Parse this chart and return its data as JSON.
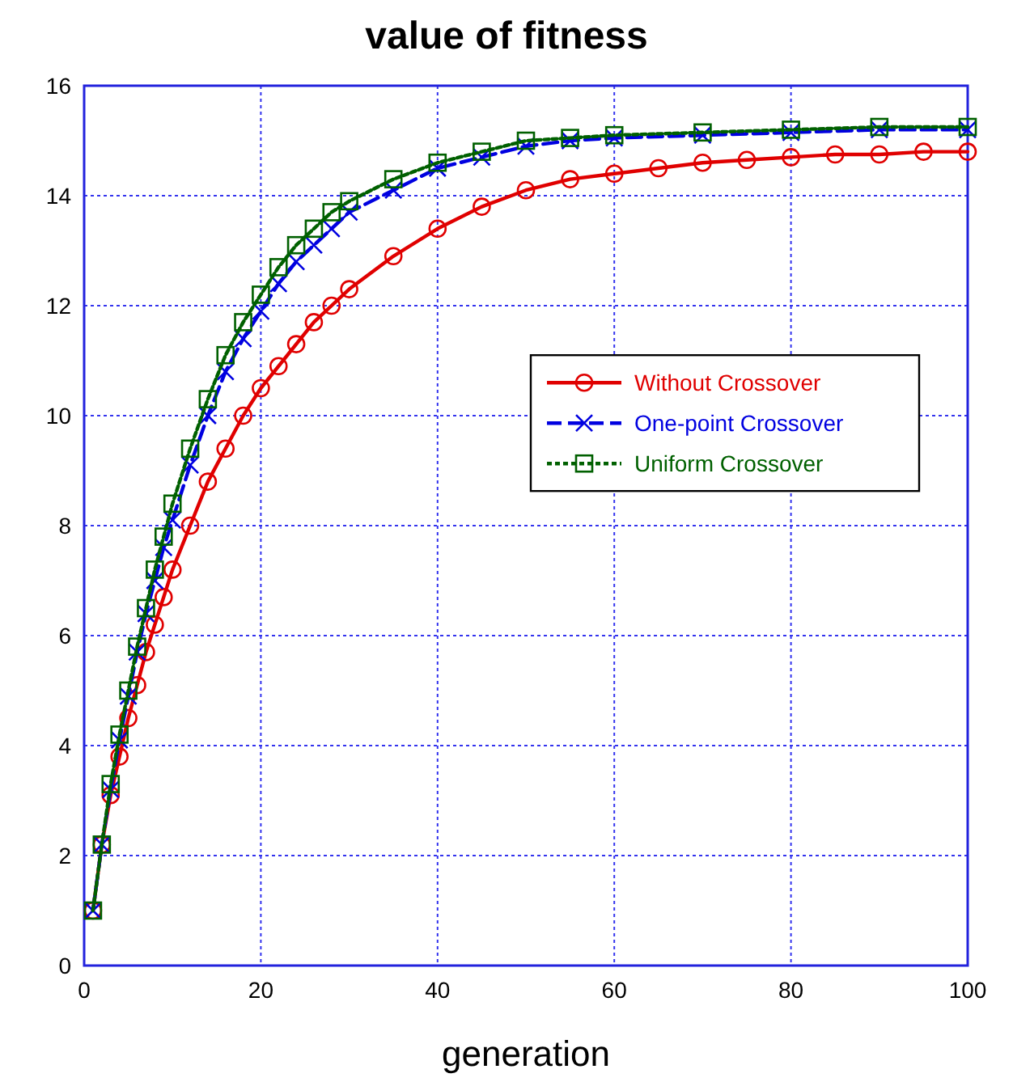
{
  "chart_data": {
    "type": "line",
    "title": "value of fitness",
    "xlabel": "generation",
    "xlim": [
      0,
      100
    ],
    "xticks": [
      0,
      20,
      40,
      60,
      80,
      100
    ],
    "ylim": [
      0,
      16
    ],
    "yticks": [
      0,
      2,
      4,
      6,
      8,
      10,
      12,
      14,
      16
    ],
    "grid": true,
    "legend": "right",
    "series": [
      {
        "name": "Without Crossover",
        "color": "#e00000",
        "marker": "circle",
        "line_style": "solid",
        "x": [
          1,
          2,
          3,
          4,
          5,
          6,
          7,
          8,
          9,
          10,
          12,
          14,
          16,
          18,
          20,
          22,
          24,
          26,
          28,
          30,
          35,
          40,
          45,
          50,
          55,
          60,
          65,
          70,
          75,
          80,
          85,
          90,
          95,
          100
        ],
        "values": [
          1,
          2.2,
          3.1,
          3.8,
          4.5,
          5.1,
          5.7,
          6.2,
          6.7,
          7.2,
          8.0,
          8.8,
          9.4,
          10.0,
          10.5,
          10.9,
          11.3,
          11.7,
          12.0,
          12.3,
          12.9,
          13.4,
          13.8,
          14.1,
          14.3,
          14.4,
          14.5,
          14.6,
          14.65,
          14.7,
          14.75,
          14.75,
          14.8,
          14.8
        ]
      },
      {
        "name": "One-point Crossover",
        "color": "#0000e0",
        "marker": "cross",
        "line_style": "dashed",
        "x": [
          1,
          2,
          3,
          4,
          5,
          6,
          7,
          8,
          9,
          10,
          12,
          14,
          16,
          18,
          20,
          22,
          24,
          26,
          28,
          30,
          35,
          40,
          45,
          50,
          55,
          60,
          70,
          80,
          90,
          100
        ],
        "values": [
          1,
          2.2,
          3.2,
          4.1,
          4.9,
          5.7,
          6.4,
          7.0,
          7.6,
          8.1,
          9.1,
          10.0,
          10.8,
          11.4,
          11.9,
          12.4,
          12.8,
          13.1,
          13.4,
          13.7,
          14.1,
          14.5,
          14.7,
          14.9,
          15.0,
          15.05,
          15.1,
          15.15,
          15.2,
          15.2
        ]
      },
      {
        "name": "Uniform Crossover",
        "color": "#006000",
        "marker": "square",
        "line_style": "dotted",
        "x": [
          1,
          2,
          3,
          4,
          5,
          6,
          7,
          8,
          9,
          10,
          12,
          14,
          16,
          18,
          20,
          22,
          24,
          26,
          28,
          30,
          35,
          40,
          45,
          50,
          55,
          60,
          70,
          80,
          90,
          100
        ],
        "values": [
          1,
          2.2,
          3.3,
          4.2,
          5.0,
          5.8,
          6.5,
          7.2,
          7.8,
          8.4,
          9.4,
          10.3,
          11.1,
          11.7,
          12.2,
          12.7,
          13.1,
          13.4,
          13.7,
          13.9,
          14.3,
          14.6,
          14.8,
          15.0,
          15.05,
          15.1,
          15.15,
          15.2,
          15.25,
          15.25
        ]
      }
    ]
  }
}
